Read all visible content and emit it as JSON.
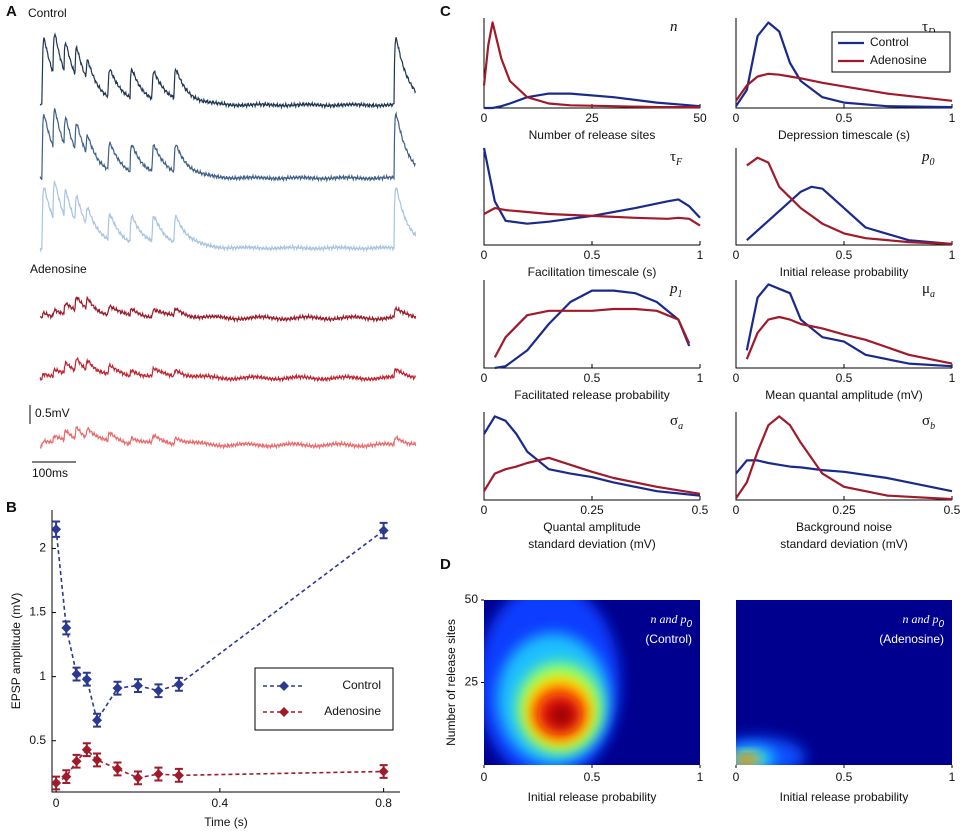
{
  "panel_a": {
    "label": "A",
    "conditions": [
      "Control",
      "Adenosine"
    ],
    "scale_bar": {
      "voltage": "0.5mV",
      "time": "100ms"
    }
  },
  "chart_data": [
    {
      "type": "line",
      "label": "B",
      "xlabel": "Time (s)",
      "ylabel": "EPSP amplitude (mV)",
      "x": [
        0,
        0.025,
        0.05,
        0.075,
        0.1,
        0.15,
        0.2,
        0.25,
        0.3,
        0.8
      ],
      "series": [
        {
          "name": "Control",
          "color": "#2b3990",
          "values": [
            2.15,
            1.38,
            1.02,
            0.98,
            0.66,
            0.91,
            0.93,
            0.89,
            0.94,
            2.14
          ],
          "errors": [
            0.06,
            0.05,
            0.05,
            0.05,
            0.05,
            0.05,
            0.05,
            0.05,
            0.05,
            0.06
          ]
        },
        {
          "name": "Adenosine",
          "color": "#a01a2a",
          "values": [
            0.17,
            0.22,
            0.34,
            0.43,
            0.35,
            0.28,
            0.21,
            0.24,
            0.23,
            0.26
          ],
          "errors": [
            0.05,
            0.05,
            0.05,
            0.05,
            0.05,
            0.05,
            0.05,
            0.05,
            0.05,
            0.05
          ]
        }
      ],
      "xlim": [
        -0.01,
        0.84
      ],
      "xticks": [
        0,
        0.4,
        0.8
      ],
      "ylim": [
        0.1,
        2.3
      ],
      "yticks": [
        0.5,
        1,
        1.5,
        2
      ],
      "legend": "center right"
    },
    {
      "type": "density",
      "label": "C",
      "title": {
        "main": "n",
        "sub": ""
      },
      "xlabel": [
        "Number of release sites"
      ],
      "xlim": [
        0,
        50
      ],
      "xticks": [
        0,
        25,
        50
      ],
      "ylim": [
        0,
        1
      ],
      "series": [
        {
          "color": "#1a2a8c",
          "x": [
            0,
            1,
            2,
            4,
            6,
            10,
            15,
            20,
            30,
            40,
            50
          ],
          "values": [
            0,
            0,
            0,
            0.02,
            0.05,
            0.12,
            0.16,
            0.16,
            0.12,
            0.06,
            0.02
          ]
        },
        {
          "color": "#a01a2a",
          "x": [
            0,
            1,
            2,
            4,
            6,
            10,
            15,
            20,
            30,
            40,
            50
          ],
          "values": [
            0.25,
            0.7,
            0.95,
            0.55,
            0.3,
            0.12,
            0.05,
            0.03,
            0.02,
            0.01,
            0.01
          ]
        }
      ]
    },
    {
      "type": "density",
      "title": {
        "main": "τ",
        "sub": "D"
      },
      "xlabel": [
        "Depression timescale (s)"
      ],
      "xlim": [
        0,
        1
      ],
      "xticks": [
        0,
        0.5,
        1
      ],
      "ylim": [
        0,
        1
      ],
      "legend": [
        {
          "name": "Control",
          "color": "#1a2a8c"
        },
        {
          "name": "Adenosine",
          "color": "#a01a2a"
        }
      ],
      "series": [
        {
          "color": "#1a2a8c",
          "x": [
            0,
            0.05,
            0.1,
            0.15,
            0.2,
            0.25,
            0.3,
            0.4,
            0.5,
            0.7,
            1
          ],
          "values": [
            0.02,
            0.2,
            0.8,
            0.95,
            0.85,
            0.5,
            0.3,
            0.12,
            0.06,
            0.02,
            0.01
          ]
        },
        {
          "color": "#a01a2a",
          "x": [
            0,
            0.05,
            0.1,
            0.15,
            0.2,
            0.25,
            0.3,
            0.4,
            0.5,
            0.7,
            1
          ],
          "values": [
            0.08,
            0.25,
            0.35,
            0.38,
            0.37,
            0.35,
            0.33,
            0.28,
            0.24,
            0.16,
            0.08
          ]
        }
      ]
    },
    {
      "type": "density",
      "title": {
        "main": "τ",
        "sub": "F"
      },
      "xlabel": [
        "Facilitation timescale (s)"
      ],
      "xlim": [
        0,
        1
      ],
      "xticks": [
        0,
        0.5,
        1
      ],
      "ylim": [
        0,
        1
      ],
      "series": [
        {
          "color": "#1a2a8c",
          "x": [
            0,
            0.05,
            0.1,
            0.2,
            0.3,
            0.5,
            0.7,
            0.85,
            0.9,
            0.95,
            1
          ],
          "values": [
            1,
            0.45,
            0.25,
            0.22,
            0.24,
            0.3,
            0.38,
            0.45,
            0.47,
            0.4,
            0.28
          ]
        },
        {
          "color": "#a01a2a",
          "x": [
            0,
            0.05,
            0.1,
            0.2,
            0.3,
            0.5,
            0.7,
            0.85,
            0.9,
            0.95,
            1
          ],
          "values": [
            0.32,
            0.38,
            0.36,
            0.34,
            0.32,
            0.3,
            0.28,
            0.27,
            0.28,
            0.27,
            0.2
          ]
        }
      ]
    },
    {
      "type": "density",
      "title": {
        "main": "p",
        "sub": "0"
      },
      "xlabel": [
        "Initial release probability"
      ],
      "xlim": [
        0,
        1
      ],
      "xticks": [
        0,
        0.5,
        1
      ],
      "ylim": [
        0,
        1
      ],
      "series": [
        {
          "color": "#1a2a8c",
          "x": [
            0.05,
            0.1,
            0.15,
            0.2,
            0.3,
            0.35,
            0.4,
            0.5,
            0.6,
            0.8,
            1
          ],
          "values": [
            0.05,
            0.15,
            0.25,
            0.35,
            0.55,
            0.6,
            0.58,
            0.38,
            0.18,
            0.05,
            0.01
          ]
        },
        {
          "color": "#a01a2a",
          "x": [
            0.05,
            0.1,
            0.15,
            0.2,
            0.3,
            0.35,
            0.4,
            0.5,
            0.6,
            0.8,
            1
          ],
          "values": [
            0.82,
            0.9,
            0.85,
            0.6,
            0.38,
            0.3,
            0.22,
            0.12,
            0.07,
            0.03,
            0.01
          ]
        }
      ]
    },
    {
      "type": "density",
      "title": {
        "main": "p",
        "sub": "1"
      },
      "xlabel": [
        "Facilitated release probability"
      ],
      "xlim": [
        0,
        1
      ],
      "xticks": [
        0,
        0.5,
        1
      ],
      "ylim": [
        0,
        1
      ],
      "series": [
        {
          "color": "#1a2a8c",
          "x": [
            0.05,
            0.1,
            0.2,
            0.3,
            0.4,
            0.5,
            0.6,
            0.7,
            0.8,
            0.9,
            0.95
          ],
          "values": [
            0,
            0.02,
            0.2,
            0.5,
            0.75,
            0.88,
            0.88,
            0.85,
            0.75,
            0.55,
            0.25
          ]
        },
        {
          "color": "#a01a2a",
          "x": [
            0.05,
            0.1,
            0.2,
            0.3,
            0.4,
            0.5,
            0.6,
            0.7,
            0.8,
            0.9,
            0.95
          ],
          "values": [
            0.12,
            0.35,
            0.6,
            0.65,
            0.65,
            0.65,
            0.67,
            0.67,
            0.65,
            0.55,
            0.28
          ]
        }
      ]
    },
    {
      "type": "density",
      "title": {
        "main": "μ",
        "sub": "a"
      },
      "xlabel": [
        "Mean quantal amplitude (mV)"
      ],
      "xlim": [
        0,
        1
      ],
      "xticks": [
        0,
        0.5,
        1
      ],
      "ylim": [
        0,
        1
      ],
      "series": [
        {
          "color": "#1a2a8c",
          "x": [
            0.05,
            0.1,
            0.15,
            0.2,
            0.25,
            0.3,
            0.4,
            0.5,
            0.6,
            0.8,
            1
          ],
          "values": [
            0.2,
            0.8,
            0.95,
            0.9,
            0.85,
            0.55,
            0.35,
            0.3,
            0.15,
            0.05,
            0.02
          ]
        },
        {
          "color": "#a01a2a",
          "x": [
            0.05,
            0.1,
            0.15,
            0.2,
            0.25,
            0.3,
            0.4,
            0.5,
            0.6,
            0.8,
            1
          ],
          "values": [
            0.1,
            0.4,
            0.55,
            0.58,
            0.55,
            0.5,
            0.45,
            0.38,
            0.32,
            0.15,
            0.05
          ]
        }
      ]
    },
    {
      "type": "density",
      "title": {
        "main": "σ",
        "sub": "a"
      },
      "xlabel": [
        "Quantal amplitude",
        "standard deviation (mV)"
      ],
      "xlim": [
        0,
        0.5
      ],
      "xticks": [
        0,
        0.25,
        0.5
      ],
      "ylim": [
        0,
        1
      ],
      "series": [
        {
          "color": "#1a2a8c",
          "x": [
            0,
            0.025,
            0.05,
            0.075,
            0.1,
            0.15,
            0.2,
            0.25,
            0.3,
            0.4,
            0.5
          ],
          "values": [
            0.75,
            0.95,
            0.9,
            0.75,
            0.55,
            0.35,
            0.3,
            0.26,
            0.2,
            0.1,
            0.05
          ]
        },
        {
          "color": "#a01a2a",
          "x": [
            0,
            0.025,
            0.05,
            0.075,
            0.1,
            0.15,
            0.2,
            0.25,
            0.3,
            0.4,
            0.5
          ],
          "values": [
            0.1,
            0.3,
            0.35,
            0.38,
            0.42,
            0.48,
            0.4,
            0.32,
            0.25,
            0.15,
            0.07
          ]
        }
      ]
    },
    {
      "type": "density",
      "title": {
        "main": "σ",
        "sub": "b"
      },
      "xlabel": [
        "Background noise",
        "standard deviation (mV)"
      ],
      "xlim": [
        0,
        0.5
      ],
      "xticks": [
        0,
        0.25,
        0.5
      ],
      "ylim": [
        0,
        1
      ],
      "series": [
        {
          "color": "#1a2a8c",
          "x": [
            0,
            0.025,
            0.05,
            0.075,
            0.1,
            0.125,
            0.15,
            0.2,
            0.25,
            0.35,
            0.5
          ],
          "values": [
            0.3,
            0.45,
            0.45,
            0.42,
            0.4,
            0.38,
            0.37,
            0.34,
            0.32,
            0.25,
            0.1
          ]
        },
        {
          "color": "#a01a2a",
          "x": [
            0,
            0.025,
            0.05,
            0.075,
            0.1,
            0.125,
            0.15,
            0.2,
            0.25,
            0.35,
            0.5
          ],
          "values": [
            0.02,
            0.2,
            0.55,
            0.85,
            0.95,
            0.85,
            0.65,
            0.3,
            0.15,
            0.05,
            0.01
          ]
        }
      ]
    },
    {
      "type": "heatmap",
      "label": "D",
      "annotation": {
        "main": "n and p",
        "sub": "0",
        "second": "(Control)"
      },
      "xlabel": "Initial release probability",
      "ylabel": "Number of release sites",
      "xlim": [
        0,
        1
      ],
      "xticks": [
        0,
        0.5,
        1
      ],
      "ylim": [
        0,
        50
      ],
      "yticks": [
        25,
        50
      ]
    },
    {
      "type": "heatmap",
      "annotation": {
        "main": "n and p",
        "sub": "0",
        "second": "(Adenosine)"
      },
      "xlabel": "Initial release probability",
      "xlim": [
        0,
        1
      ],
      "xticks": [
        0,
        0.5,
        1
      ],
      "ylim": [
        0,
        50
      ]
    }
  ]
}
